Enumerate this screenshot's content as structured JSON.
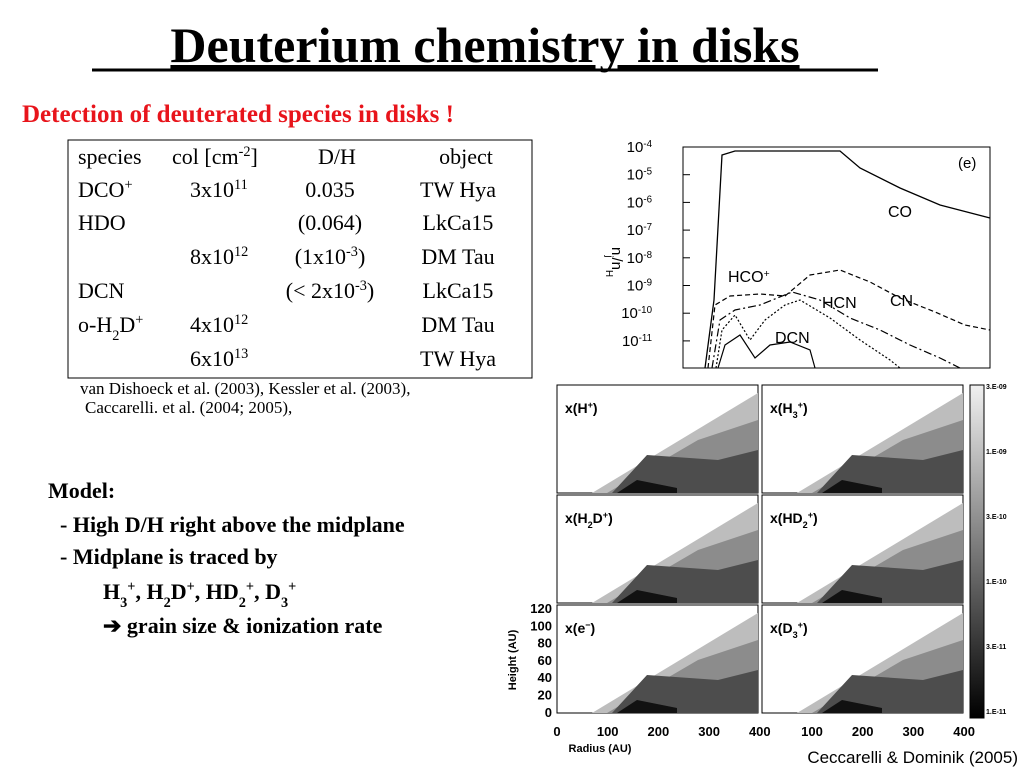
{
  "title": "Deuterium chemistry in disks",
  "subtitle": "Detection of deuterated species in disks !",
  "table": {
    "header": [
      [
        "species"
      ],
      [
        "col [cm",
        {
          "sup": "-2"
        },
        "]"
      ],
      [
        "D/H"
      ],
      [
        "object"
      ]
    ],
    "rows": [
      [
        [
          "DCO",
          {
            "sup": "+"
          }
        ],
        [
          "3x10",
          {
            "sup": "11"
          }
        ],
        [
          "0.035"
        ],
        [
          "TW Hya"
        ]
      ],
      [
        [
          "HDO"
        ],
        null,
        [
          "(0.064)"
        ],
        [
          "LkCa15"
        ]
      ],
      [
        null,
        [
          "8x10",
          {
            "sup": "12"
          }
        ],
        [
          "(1x10",
          {
            "sup": "-3"
          },
          ")"
        ],
        [
          "DM Tau"
        ]
      ],
      [
        [
          "DCN"
        ],
        null,
        [
          "(< 2x10",
          {
            "sup": "-3"
          },
          ")"
        ],
        [
          "LkCa15"
        ]
      ],
      [
        [
          "o-H",
          {
            "sub": "2"
          },
          "D",
          {
            "sup": "+"
          }
        ],
        [
          "4x10",
          {
            "sup": "12"
          }
        ],
        null,
        [
          "DM Tau"
        ]
      ],
      [
        null,
        [
          "6x10",
          {
            "sup": "13"
          }
        ],
        null,
        [
          "TW Hya"
        ]
      ]
    ]
  },
  "references": [
    "van Dishoeck et al. (2003), Kessler et al. (2003),",
    "Caccarelli. et al. (2004; 2005),"
  ],
  "model": {
    "heading": "Model:",
    "lines": [
      [
        "- High D/H right above the midplane"
      ],
      [
        "- Midplane is traced by"
      ],
      [
        "H",
        {
          "sub": "3"
        },
        {
          "sup": "+"
        },
        ", H",
        {
          "sub": "2"
        },
        "D",
        {
          "sup": "+"
        },
        ", HD",
        {
          "sub": "2"
        },
        {
          "sup": "+"
        },
        ", D",
        {
          "sub": "3"
        },
        {
          "sup": "+"
        }
      ],
      [
        "➔ grain size &  ionization rate"
      ]
    ]
  },
  "abundance_plot": {
    "yticks": [
      [
        "10",
        {
          "sup": "-4"
        }
      ],
      [
        "10",
        {
          "sup": "-5"
        }
      ],
      [
        "10",
        {
          "sup": "-6"
        }
      ],
      [
        "10",
        {
          "sup": "-7"
        }
      ],
      [
        "10",
        {
          "sup": "-8"
        }
      ],
      [
        "10",
        {
          "sup": "-9"
        }
      ],
      [
        "10",
        {
          "sup": "-10"
        }
      ],
      [
        "10",
        {
          "sup": "-11"
        }
      ]
    ],
    "ylabel": [
      [
        "n",
        {
          "sub": "j"
        },
        "/n",
        {
          "sub": "H"
        }
      ]
    ],
    "panel_label": "(e)",
    "curve_labels": [
      [
        "CO"
      ],
      [
        "HCO",
        {
          "sup": "+"
        }
      ],
      [
        "HCN"
      ],
      [
        "CN"
      ],
      [
        "DCN"
      ]
    ]
  },
  "contour_maps": {
    "panels": [
      [
        "x(H",
        {
          "sup": "+"
        },
        ")"
      ],
      [
        "x(H",
        {
          "sub": "3"
        },
        {
          "sup": "+"
        },
        ")"
      ],
      [
        "x(H",
        {
          "sub": "2"
        },
        "D",
        {
          "sup": "+"
        },
        ")"
      ],
      [
        "x(HD",
        {
          "sub": "2"
        },
        {
          "sup": "+"
        },
        ")"
      ],
      [
        "x(e",
        {
          "sup": "−"
        },
        ")"
      ],
      [
        "x(D",
        {
          "sub": "3"
        },
        {
          "sup": "+"
        },
        ")"
      ]
    ],
    "colorbar_labels": [
      "3.E-09",
      "1.E-09",
      "3.E-10",
      "1.E-10",
      "3.E-11",
      "1.E-11"
    ],
    "yticks": [
      "120",
      "100",
      "80",
      "60",
      "40",
      "20",
      "0"
    ],
    "ylabel": "Height  (AU)",
    "xticks": [
      "0",
      "100",
      "200",
      "300",
      "400"
    ],
    "xticks_right": [
      "100",
      "200",
      "300",
      "400"
    ],
    "xlabel": "Radius (AU)"
  },
  "credit": "Ceccarelli & Dominik (2005)"
}
